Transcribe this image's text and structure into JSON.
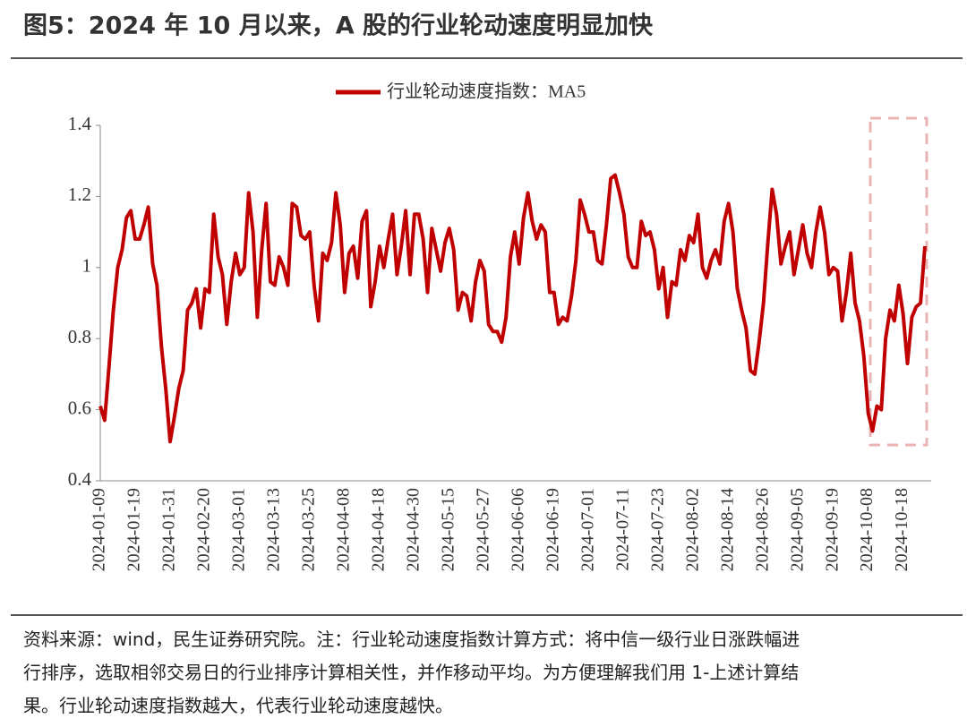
{
  "chart_data": {
    "type": "line",
    "title": "图5：2024 年 10 月以来，A 股的行业轮动速度明显加快",
    "note": [
      "资料来源：wind，民生证券研究院。注：行业轮动速度指数计算方式：将中信一级行业日涨跌幅进",
      "行排序，选取相邻交易日的行业排序计算相关性，并作移动平均。为方便理解我们用 1-上述计算结",
      "果。行业轮动速度指数越大，代表行业轮动速度越快。"
    ],
    "categories": [
      "2024-01-09",
      null,
      null,
      null,
      null,
      null,
      null,
      null,
      "2024-01-19",
      null,
      null,
      null,
      null,
      null,
      null,
      null,
      "2024-01-31",
      null,
      null,
      null,
      null,
      null,
      null,
      null,
      "2024-02-20",
      null,
      null,
      null,
      null,
      null,
      null,
      null,
      "2024-03-01",
      null,
      null,
      null,
      null,
      null,
      null,
      null,
      "2024-03-13",
      null,
      null,
      null,
      null,
      null,
      null,
      null,
      "2024-03-25",
      null,
      null,
      null,
      null,
      null,
      null,
      null,
      "2024-04-08",
      null,
      null,
      null,
      null,
      null,
      null,
      null,
      "2024-04-18",
      null,
      null,
      null,
      null,
      null,
      null,
      null,
      "2024-04-30",
      null,
      null,
      null,
      null,
      null,
      null,
      null,
      "2024-05-15",
      null,
      null,
      null,
      null,
      null,
      null,
      null,
      "2024-05-27",
      null,
      null,
      null,
      null,
      null,
      null,
      null,
      "2024-06-06",
      null,
      null,
      null,
      null,
      null,
      null,
      null,
      "2024-06-19",
      null,
      null,
      null,
      null,
      null,
      null,
      null,
      "2024-07-01",
      null,
      null,
      null,
      null,
      null,
      null,
      null,
      "2024-07-11",
      null,
      null,
      null,
      null,
      null,
      null,
      null,
      "2024-07-23",
      null,
      null,
      null,
      null,
      null,
      null,
      null,
      "2024-08-02",
      null,
      null,
      null,
      null,
      null,
      null,
      null,
      "2024-08-14",
      null,
      null,
      null,
      null,
      null,
      null,
      null,
      "2024-08-26",
      null,
      null,
      null,
      null,
      null,
      null,
      null,
      "2024-09-05",
      null,
      null,
      null,
      null,
      null,
      null,
      null,
      "2024-09-19",
      null,
      null,
      null,
      null,
      null,
      null,
      null,
      "2024-10-08",
      null,
      null,
      null,
      null,
      null,
      null,
      null,
      "2024-10-18",
      null,
      null,
      null,
      null,
      null
    ],
    "series": [
      {
        "name": "行业轮动速度指数：MA5",
        "color": "#c00000",
        "values": [
          0.61,
          0.57,
          0.72,
          0.88,
          1.0,
          1.05,
          1.14,
          1.16,
          1.08,
          1.08,
          1.12,
          1.17,
          1.01,
          0.95,
          0.78,
          0.66,
          0.51,
          0.58,
          0.66,
          0.71,
          0.88,
          0.9,
          0.94,
          0.83,
          0.94,
          0.93,
          1.15,
          1.03,
          0.98,
          0.84,
          0.96,
          1.04,
          0.98,
          1.0,
          1.21,
          1.1,
          0.86,
          1.05,
          1.18,
          0.96,
          0.95,
          1.03,
          1.0,
          0.95,
          1.18,
          1.17,
          1.09,
          1.08,
          1.1,
          0.95,
          0.85,
          1.04,
          1.02,
          1.07,
          1.21,
          1.12,
          0.93,
          1.04,
          1.06,
          0.97,
          1.13,
          1.16,
          0.89,
          0.96,
          1.06,
          1.0,
          1.08,
          1.15,
          0.98,
          1.06,
          1.16,
          0.98,
          1.15,
          1.15,
          1.08,
          0.93,
          1.11,
          1.05,
          0.99,
          1.07,
          1.11,
          1.05,
          0.88,
          0.93,
          0.92,
          0.85,
          0.96,
          1.02,
          0.99,
          0.84,
          0.82,
          0.82,
          0.79,
          0.86,
          1.03,
          1.1,
          1.01,
          1.14,
          1.21,
          1.13,
          1.08,
          1.12,
          1.1,
          0.93,
          0.93,
          0.84,
          0.86,
          0.85,
          0.92,
          1.02,
          1.19,
          1.15,
          1.1,
          1.1,
          1.02,
          1.01,
          1.12,
          1.25,
          1.26,
          1.21,
          1.15,
          1.03,
          1.0,
          1.0,
          1.13,
          1.09,
          1.1,
          1.05,
          0.94,
          1.0,
          0.86,
          0.96,
          0.95,
          1.05,
          1.02,
          1.09,
          1.07,
          1.15,
          1.0,
          0.97,
          1.02,
          1.05,
          1.01,
          1.13,
          1.18,
          1.1,
          0.94,
          0.88,
          0.83,
          0.71,
          0.7,
          0.79,
          0.9,
          1.07,
          1.22,
          1.15,
          1.01,
          1.06,
          1.1,
          0.98,
          1.05,
          1.12,
          1.04,
          1.0,
          1.1,
          1.17,
          1.1,
          0.98,
          1.0,
          0.99,
          0.85,
          0.93,
          1.04,
          0.9,
          0.85,
          0.75,
          0.59,
          0.54,
          0.61,
          0.6,
          0.8,
          0.88,
          0.85,
          0.95,
          0.87,
          0.73,
          0.86,
          0.89,
          0.9,
          1.06
        ]
      }
    ],
    "ylim": [
      0.4,
      1.4
    ],
    "yticks": [
      0.4,
      0.6,
      0.8,
      1,
      1.2,
      1.4
    ]
  }
}
